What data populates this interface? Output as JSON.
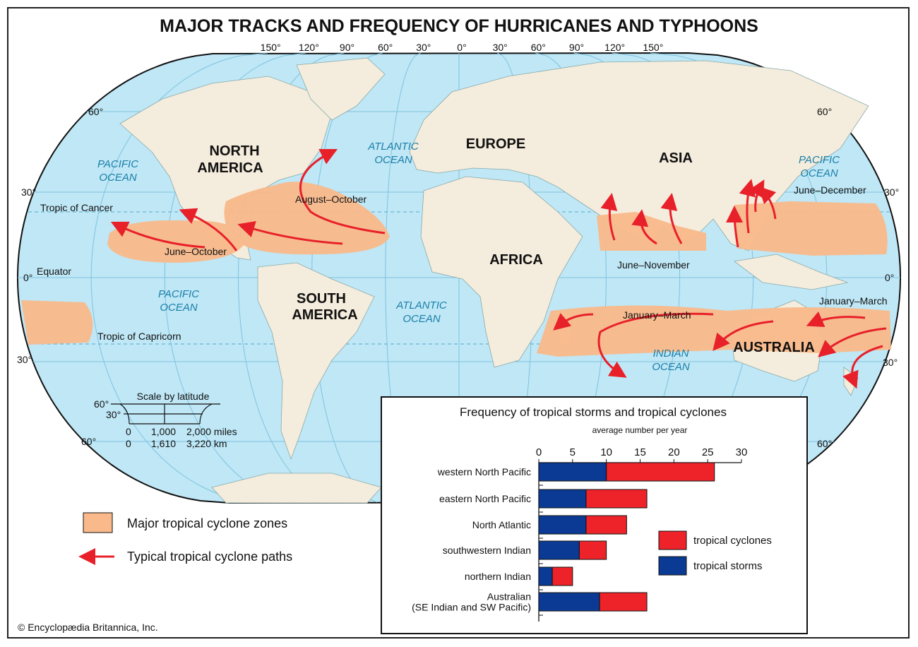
{
  "title": "MAJOR TRACKS AND FREQUENCY OF HURRICANES AND TYPHOONS",
  "colors": {
    "ocean": "#bfe7f6",
    "land": "#f4ecdc",
    "zone": "#f9b98a",
    "path": "#e8202a",
    "storms": "#0a3a94",
    "cyclones": "#ee2229"
  },
  "longitude_labels": [
    "150°",
    "120°",
    "90°",
    "60°",
    "30°",
    "0°",
    "30°",
    "60°",
    "90°",
    "120°",
    "150°"
  ],
  "latitude_labels": {
    "n60_left": "60°",
    "n60_right": "60°",
    "n30_left": "30°",
    "n30_right": "30°",
    "eq_left": "0°",
    "eq_right": "0°",
    "s30_left": "30°",
    "s30_right": "30°",
    "s60_left": "60°",
    "s60_right": "60°"
  },
  "map_labels": {
    "north_america": [
      "NORTH",
      "AMERICA"
    ],
    "south_america": [
      "SOUTH",
      "AMERICA"
    ],
    "europe": "EUROPE",
    "asia": "ASIA",
    "africa": "AFRICA",
    "australia": "AUSTRALIA",
    "pacific_nw": [
      "PACIFIC",
      "OCEAN"
    ],
    "pacific_ne": [
      "PACIFIC",
      "OCEAN"
    ],
    "pacific_s": [
      "PACIFIC",
      "OCEAN"
    ],
    "atlantic_n": [
      "ATLANTIC",
      "OCEAN"
    ],
    "atlantic_s": [
      "ATLANTIC",
      "OCEAN"
    ],
    "indian": [
      "INDIAN",
      "OCEAN"
    ],
    "tropic_cancer": "Tropic of Cancer",
    "equator": "Equator",
    "tropic_capricorn": "Tropic of Capricorn"
  },
  "seasons": {
    "east_pacific": "June–October",
    "atlantic": "August–October",
    "north_indian": "June–November",
    "west_pacific": "June–December",
    "south_indian": "January–March",
    "australia_east": "January–March"
  },
  "scale": {
    "title": "Scale by latitude",
    "lat_60": "60°",
    "lat_30": "30°",
    "miles": [
      "0",
      "1,000",
      "2,000 miles"
    ],
    "km": [
      "0",
      "1,610",
      "3,220 km"
    ]
  },
  "legend": {
    "zones": "Major tropical cyclone zones",
    "paths": "Typical tropical cyclone paths"
  },
  "copyright": "© Encyclopædia Britannica, Inc.",
  "chart_data": {
    "type": "bar",
    "stacked": true,
    "orientation": "horizontal",
    "title": "Frequency of tropical storms and tropical cyclones",
    "xlabel": "average number per year",
    "xlim": [
      0,
      30
    ],
    "xticks": [
      "0",
      "5",
      "10",
      "15",
      "20",
      "25",
      "30"
    ],
    "categories": [
      "western North Pacific",
      "eastern North Pacific",
      "North Atlantic",
      "southwestern Indian",
      "northern Indian",
      "Australian\n(SE Indian and SW Pacific)"
    ],
    "series": [
      {
        "name": "tropical storms",
        "values": [
          10,
          7,
          7,
          6,
          2,
          9
        ]
      },
      {
        "name": "tropical cyclones",
        "values": [
          16,
          9,
          6,
          4,
          3,
          7
        ]
      }
    ],
    "legend_order": [
      "tropical cyclones",
      "tropical storms"
    ],
    "legend_position": "right"
  }
}
